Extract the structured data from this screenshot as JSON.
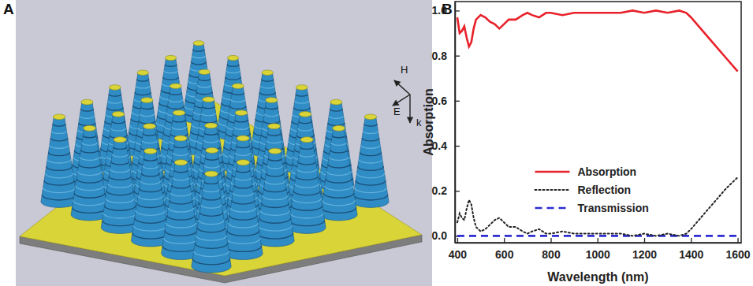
{
  "figure": {
    "panel_labels": [
      "A",
      "B"
    ],
    "field_labels": [
      "H",
      "E",
      "k"
    ]
  },
  "chart_data": {
    "type": "line",
    "x_label": "Wavelength (nm)",
    "y_label": "Absorption",
    "x": [
      400,
      410,
      420,
      430,
      440,
      450,
      460,
      470,
      480,
      500,
      520,
      540,
      560,
      580,
      600,
      620,
      650,
      680,
      700,
      720,
      750,
      780,
      800,
      850,
      900,
      950,
      1000,
      1050,
      1100,
      1150,
      1200,
      1250,
      1300,
      1350,
      1380,
      1400,
      1450,
      1500,
      1550,
      1600
    ],
    "series": [
      {
        "name": "Absorption",
        "color": "#e8212a",
        "line_style": "solid",
        "values": [
          0.97,
          0.9,
          0.91,
          0.93,
          0.88,
          0.84,
          0.86,
          0.92,
          0.96,
          0.98,
          0.97,
          0.95,
          0.94,
          0.92,
          0.94,
          0.96,
          0.96,
          0.98,
          0.99,
          0.98,
          0.97,
          0.99,
          0.99,
          0.98,
          0.99,
          0.99,
          0.99,
          0.99,
          0.99,
          1.0,
          0.99,
          1.0,
          0.99,
          1.0,
          0.99,
          0.97,
          0.91,
          0.85,
          0.79,
          0.73
        ]
      },
      {
        "name": "Reflection",
        "color": "#222222",
        "line_style": "dotted",
        "values": [
          0.06,
          0.1,
          0.08,
          0.07,
          0.12,
          0.16,
          0.14,
          0.08,
          0.04,
          0.02,
          0.03,
          0.05,
          0.07,
          0.08,
          0.06,
          0.04,
          0.04,
          0.02,
          0.01,
          0.02,
          0.03,
          0.01,
          0.01,
          0.02,
          0.01,
          0.01,
          0.01,
          0.01,
          0.01,
          0.0,
          0.01,
          0.0,
          0.01,
          0.0,
          0.01,
          0.03,
          0.09,
          0.15,
          0.21,
          0.26
        ]
      },
      {
        "name": "Transmission",
        "color": "#2d2dd2",
        "line_style": "dashed",
        "values": [
          0,
          0,
          0,
          0,
          0,
          0,
          0,
          0,
          0,
          0,
          0,
          0,
          0,
          0,
          0,
          0,
          0,
          0,
          0,
          0,
          0,
          0,
          0,
          0,
          0,
          0,
          0,
          0,
          0,
          0,
          0,
          0,
          0,
          0,
          0,
          0,
          0,
          0,
          0,
          0
        ]
      }
    ],
    "xlim": [
      390,
      1615
    ],
    "xticks": [
      400,
      600,
      800,
      1000,
      1200,
      1400,
      1600
    ],
    "ylim": [
      -0.03,
      1.04
    ],
    "yticks": [
      {
        "value": 0,
        "label": "0.0"
      },
      0.2,
      0.4,
      0.6,
      0.8,
      {
        "value": 1,
        "label": "1.0"
      }
    ],
    "grid": false,
    "legend": "lower center"
  }
}
